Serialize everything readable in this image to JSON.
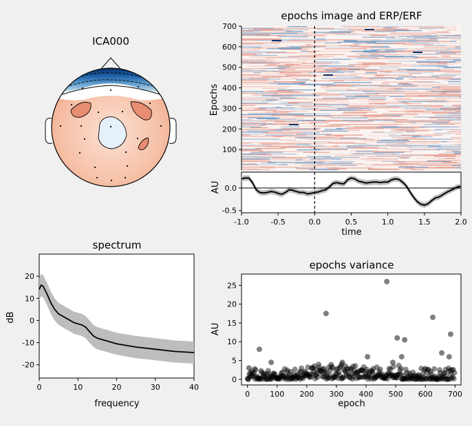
{
  "colors": {
    "background": "#f0f0f0",
    "negative": "#2166ac",
    "positive": "#d6604d",
    "mean_line": "#000000",
    "ci_band": "#bdbdbd",
    "scatter": "#000000"
  },
  "chart_data": [
    {
      "type": "heatmap",
      "panel": "topomap",
      "title": "ICA000",
      "description_values": {
        "frontal": "negative",
        "central_and_posterior": "positive"
      }
    },
    {
      "type": "heatmap",
      "panel": "epochs_image",
      "title": "epochs image and ERP/ERF",
      "xlabel": "",
      "ylabel": "Epochs",
      "ylim": [
        0,
        700
      ],
      "yticks": [
        100,
        200,
        300,
        400,
        500,
        600,
        700
      ],
      "n_epochs": 700
    },
    {
      "type": "line",
      "panel": "erp",
      "xlabel": "time",
      "ylabel": "AU",
      "xlim": [
        -1.0,
        2.0
      ],
      "ylim": [
        -0.55,
        0.35
      ],
      "xticks": [
        "-1.0",
        "-0.5",
        "0.0",
        "0.5",
        "1.0",
        "1.5",
        "2.0"
      ],
      "yticks": [
        "-0.5",
        "0.0"
      ],
      "event_time": 0.0,
      "x": [
        -1.0,
        -0.95,
        -0.9,
        -0.85,
        -0.8,
        -0.75,
        -0.7,
        -0.65,
        -0.6,
        -0.55,
        -0.5,
        -0.45,
        -0.4,
        -0.35,
        -0.3,
        -0.25,
        -0.2,
        -0.15,
        -0.1,
        -0.05,
        0.0,
        0.05,
        0.1,
        0.15,
        0.2,
        0.25,
        0.3,
        0.35,
        0.4,
        0.45,
        0.5,
        0.55,
        0.6,
        0.65,
        0.7,
        0.75,
        0.8,
        0.85,
        0.9,
        0.95,
        1.0,
        1.05,
        1.1,
        1.15,
        1.2,
        1.25,
        1.3,
        1.35,
        1.4,
        1.45,
        1.5,
        1.55,
        1.6,
        1.65,
        1.7,
        1.75,
        1.8,
        1.85,
        1.9,
        1.95,
        2.0
      ],
      "y": [
        0.2,
        0.22,
        0.22,
        0.12,
        -0.04,
        -0.1,
        -0.11,
        -0.1,
        -0.08,
        -0.09,
        -0.12,
        -0.14,
        -0.1,
        -0.04,
        -0.05,
        -0.08,
        -0.1,
        -0.1,
        -0.13,
        -0.12,
        -0.1,
        -0.09,
        -0.06,
        -0.04,
        0.02,
        0.1,
        0.12,
        0.1,
        0.09,
        0.18,
        0.22,
        0.2,
        0.15,
        0.13,
        0.11,
        0.12,
        0.13,
        0.13,
        0.12,
        0.13,
        0.13,
        0.18,
        0.2,
        0.19,
        0.13,
        0.05,
        -0.08,
        -0.2,
        -0.3,
        -0.36,
        -0.38,
        -0.35,
        -0.28,
        -0.22,
        -0.2,
        -0.15,
        -0.1,
        -0.06,
        -0.02,
        0.02,
        0.04
      ],
      "ci": 0.06
    },
    {
      "type": "line",
      "panel": "spectrum",
      "title": "spectrum",
      "xlabel": "frequency",
      "ylabel": "dB",
      "xlim": [
        0,
        40
      ],
      "ylim": [
        -26,
        30
      ],
      "xticks": [
        0,
        10,
        20,
        30,
        40
      ],
      "yticks": [
        -20,
        -10,
        0,
        10,
        20
      ],
      "x": [
        0,
        0.5,
        1,
        2,
        3,
        4,
        5,
        6,
        7,
        8,
        9,
        10,
        11,
        12,
        13,
        14,
        15,
        17,
        20,
        25,
        30,
        35,
        40
      ],
      "y": [
        14,
        16,
        15.5,
        12,
        8,
        5,
        3,
        2,
        1,
        0,
        -1,
        -1.5,
        -2,
        -3,
        -5,
        -7,
        -8,
        -9,
        -10.5,
        -12,
        -13,
        -14,
        -14.5
      ],
      "ci": 5
    },
    {
      "type": "scatter",
      "panel": "epochs_variance",
      "title": "epochs variance",
      "xlabel": "epoch",
      "ylabel": "AU",
      "xlim": [
        -20,
        720
      ],
      "ylim": [
        -1.5,
        28
      ],
      "xticks": [
        0,
        100,
        200,
        300,
        400,
        500,
        600,
        700
      ],
      "yticks": [
        0,
        5,
        10,
        15,
        20,
        25
      ],
      "outliers": [
        [
          5,
          3
        ],
        [
          40,
          8
        ],
        [
          80,
          4.5
        ],
        [
          265,
          17.5
        ],
        [
          320,
          4.5
        ],
        [
          405,
          6
        ],
        [
          470,
          26
        ],
        [
          490,
          4.5
        ],
        [
          505,
          11
        ],
        [
          520,
          6
        ],
        [
          530,
          10.5
        ],
        [
          625,
          16.5
        ],
        [
          655,
          7
        ],
        [
          680,
          6
        ],
        [
          685,
          12
        ]
      ],
      "bulk": {
        "n": 700,
        "range": [
          0,
          3
        ]
      }
    }
  ]
}
